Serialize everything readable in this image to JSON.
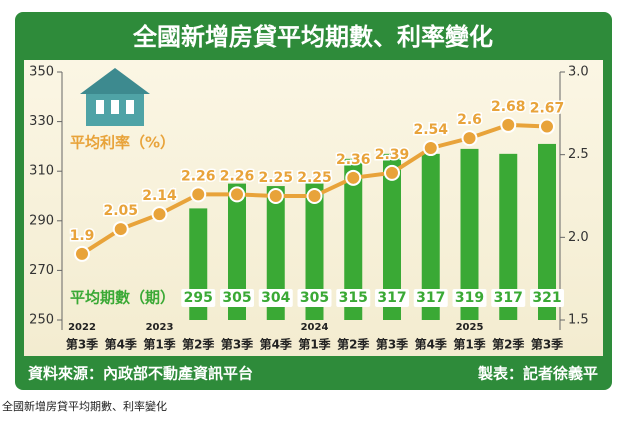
{
  "chart_data": {
    "type": "bar-line",
    "title": "全國新增房貸平均期數、利率變化",
    "categories": [
      "第3季",
      "第4季",
      "第1季",
      "第2季",
      "第3季",
      "第4季",
      "第1季",
      "第2季",
      "第3季",
      "第4季",
      "第1季",
      "第2季",
      "第3季"
    ],
    "year_labels": [
      "2022",
      null,
      "2023",
      null,
      null,
      null,
      "2024",
      null,
      null,
      null,
      "2025",
      null,
      null
    ],
    "series": [
      {
        "name": "平均期數（期）",
        "color": "#3aa935",
        "values": [
          null,
          null,
          null,
          295,
          305,
          304,
          305,
          315,
          317,
          317,
          319,
          317,
          321
        ]
      },
      {
        "name": "平均利率（%）",
        "color": "#e8a33a",
        "axis": "y2",
        "values": [
          1.9,
          2.05,
          2.14,
          2.26,
          2.26,
          2.25,
          2.25,
          2.36,
          2.39,
          2.54,
          2.6,
          2.68,
          2.67
        ]
      }
    ],
    "ylim": [
      250,
      350
    ],
    "yticks": [
      250,
      270,
      290,
      310,
      330,
      350
    ],
    "y2lim": [
      1.5,
      3.0
    ],
    "y2ticks": [
      {
        "value": 1.5,
        "label": "1.5"
      },
      {
        "value": 2.0,
        "label": "2.0"
      },
      {
        "value": 2.5,
        "label": "2.5"
      },
      {
        "value": 3.0,
        "label": "3.0"
      }
    ],
    "source": "資料來源：內政部不動產資訊平台",
    "credit": "製表：記者徐義平",
    "caption": "全國新增房貸平均期數、利率變化"
  }
}
